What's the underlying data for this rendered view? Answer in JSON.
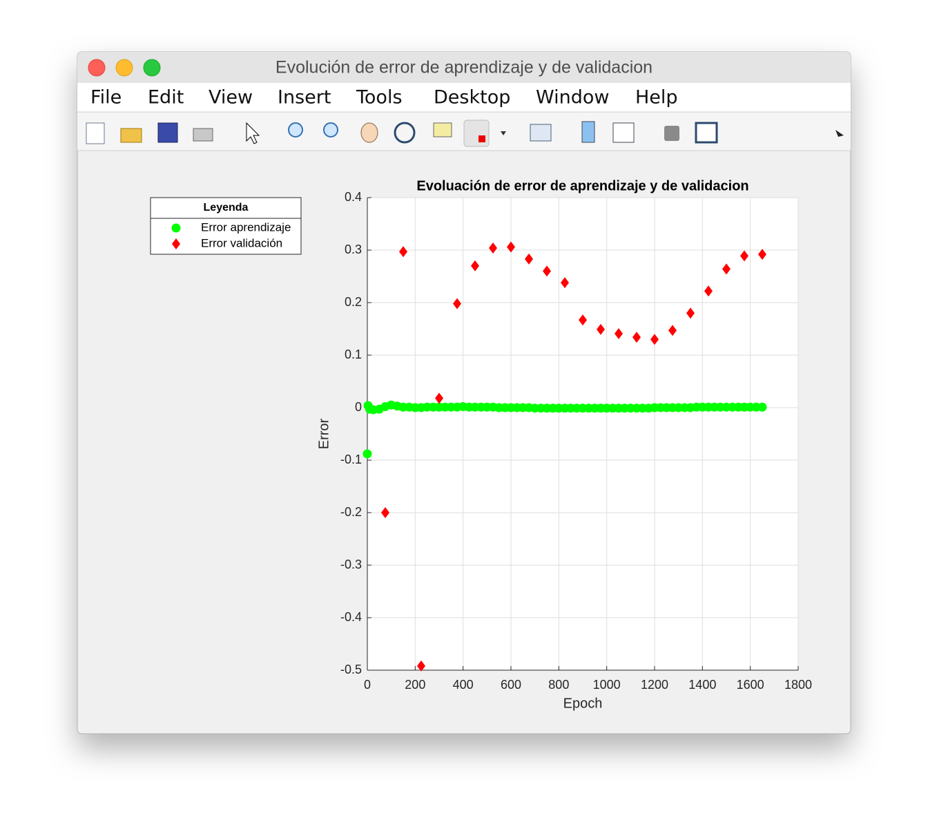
{
  "window": {
    "title": "Evolución de error de aprendizaje y de validacion",
    "menu": [
      "File",
      "Edit",
      "View",
      "Insert",
      "Tools",
      "Desktop",
      "Window",
      "Help"
    ]
  },
  "chart_data": {
    "type": "scatter",
    "title": "Evoluación de error de aprendizaje y de validacion",
    "x_label": "Epoch",
    "y_label": "Error",
    "legend_title": "Leyenda",
    "legend": "upper left outside",
    "xlim": [
      0,
      1800
    ],
    "xticks": [
      0,
      200,
      400,
      600,
      800,
      1000,
      1200,
      1400,
      1600,
      1800
    ],
    "ylim": [
      -0.5,
      0.4
    ],
    "yticks": [
      -0.5,
      -0.4,
      -0.3,
      -0.2,
      -0.1,
      0,
      0.1,
      0.2,
      0.3,
      0.4
    ],
    "grid": true,
    "series": [
      {
        "name": "Error aprendizaje",
        "color": "#00ff00",
        "marker": "circle",
        "x": [
          0,
          3,
          10,
          25,
          50,
          75,
          100,
          125,
          150,
          175,
          200,
          225,
          250,
          275,
          300,
          325,
          350,
          375,
          400,
          425,
          450,
          475,
          500,
          525,
          550,
          575,
          600,
          625,
          650,
          675,
          700,
          725,
          750,
          775,
          800,
          825,
          850,
          875,
          900,
          925,
          950,
          975,
          1000,
          1025,
          1050,
          1075,
          1100,
          1125,
          1150,
          1175,
          1200,
          1225,
          1250,
          1275,
          1300,
          1325,
          1350,
          1375,
          1400,
          1425,
          1450,
          1475,
          1500,
          1525,
          1550,
          1575,
          1600,
          1625,
          1650
        ],
        "values": [
          -0.088,
          0.004,
          -0.003,
          -0.004,
          -0.003,
          0.002,
          0.005,
          0.003,
          0.001,
          0.001,
          0,
          0,
          0.001,
          0.001,
          0.001,
          0.001,
          0.001,
          0.001,
          0.002,
          0.001,
          0.001,
          0.001,
          0.001,
          0.001,
          0,
          0,
          0,
          0,
          0,
          0,
          -0.001,
          -0.001,
          -0.001,
          -0.001,
          -0.001,
          -0.001,
          -0.001,
          -0.001,
          -0.001,
          -0.001,
          -0.001,
          -0.001,
          -0.001,
          -0.001,
          -0.001,
          -0.001,
          -0.001,
          -0.001,
          -0.001,
          -0.001,
          0,
          0,
          0,
          0,
          0,
          0,
          0,
          0.001,
          0.001,
          0.001,
          0.001,
          0.001,
          0.001,
          0.001,
          0.001,
          0.001,
          0.001,
          0.001,
          0.001
        ]
      },
      {
        "name": "Error validación",
        "color": "#ff0000",
        "marker": "diamond",
        "x": [
          75,
          150,
          225,
          300,
          375,
          450,
          525,
          600,
          675,
          750,
          825,
          900,
          975,
          1050,
          1125,
          1200,
          1275,
          1350,
          1425,
          1500,
          1575,
          1650
        ],
        "values": [
          -0.2,
          0.297,
          -0.492,
          0.018,
          0.198,
          0.27,
          0.304,
          0.306,
          0.283,
          0.26,
          0.238,
          0.167,
          0.149,
          0.141,
          0.134,
          0.13,
          0.147,
          0.18,
          0.222,
          0.264,
          0.289,
          0.292
        ]
      }
    ]
  }
}
